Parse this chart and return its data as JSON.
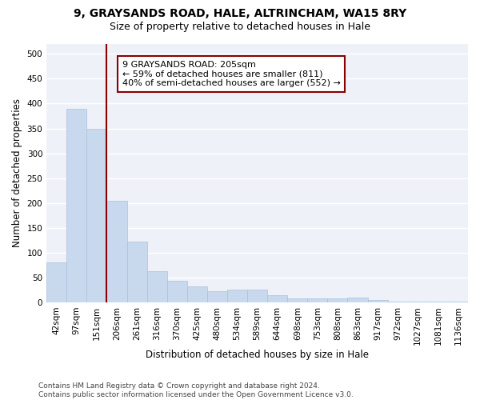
{
  "title_line1": "9, GRAYSANDS ROAD, HALE, ALTRINCHAM, WA15 8RY",
  "title_line2": "Size of property relative to detached houses in Hale",
  "xlabel": "Distribution of detached houses by size in Hale",
  "ylabel": "Number of detached properties",
  "categories": [
    "42sqm",
    "97sqm",
    "151sqm",
    "206sqm",
    "261sqm",
    "316sqm",
    "370sqm",
    "425sqm",
    "480sqm",
    "534sqm",
    "589sqm",
    "644sqm",
    "698sqm",
    "753sqm",
    "808sqm",
    "863sqm",
    "917sqm",
    "972sqm",
    "1027sqm",
    "1081sqm",
    "1136sqm"
  ],
  "values": [
    80,
    390,
    350,
    204,
    122,
    63,
    44,
    32,
    22,
    25,
    25,
    15,
    8,
    8,
    8,
    10,
    4,
    2,
    1,
    1,
    1
  ],
  "bar_color": "#c8d9ee",
  "bar_edge_color": "#a8c0e0",
  "vline_color": "#8b0000",
  "annotation_text": "9 GRAYSANDS ROAD: 205sqm\n← 59% of detached houses are smaller (811)\n40% of semi-detached houses are larger (552) →",
  "annotation_box_color": "white",
  "annotation_box_edge_color": "#8b0000",
  "ylim": [
    0,
    520
  ],
  "yticks": [
    0,
    50,
    100,
    150,
    200,
    250,
    300,
    350,
    400,
    450,
    500
  ],
  "background_color": "#eef2f8",
  "grid_color": "white",
  "footer_text": "Contains HM Land Registry data © Crown copyright and database right 2024.\nContains public sector information licensed under the Open Government Licence v3.0.",
  "title_fontsize": 10,
  "subtitle_fontsize": 9,
  "axis_label_fontsize": 8.5,
  "tick_fontsize": 7.5,
  "annotation_fontsize": 8,
  "footer_fontsize": 6.5
}
